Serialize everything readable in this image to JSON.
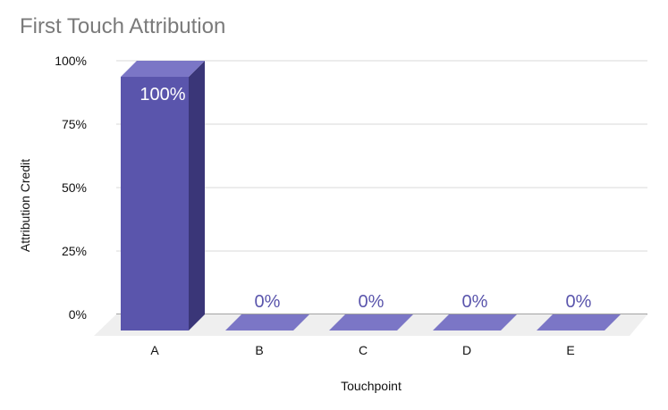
{
  "chart_data": {
    "type": "bar",
    "title": "First Touch Attribution",
    "xlabel": "Touchpoint",
    "ylabel": "Attribution Credit",
    "categories": [
      "A",
      "B",
      "C",
      "D",
      "E"
    ],
    "values": [
      100,
      0,
      0,
      0,
      0
    ],
    "data_labels": [
      "100%",
      "0%",
      "0%",
      "0%",
      "0%"
    ],
    "yticks": [
      0,
      25,
      50,
      75,
      100
    ],
    "ytick_labels": [
      "0%",
      "25%",
      "50%",
      "75%",
      "100%"
    ],
    "ylim": [
      0,
      100
    ],
    "grid": true,
    "style": "3d",
    "colors": {
      "bar_front": "#5a55ac",
      "bar_top": "#7b76c6",
      "bar_side": "#3a3678",
      "floor": "#efefef",
      "grid": "#d9d9d9",
      "label_inside": "#ffffff",
      "label_outside": "#5a55ac",
      "title": "#7a7a7a"
    }
  }
}
